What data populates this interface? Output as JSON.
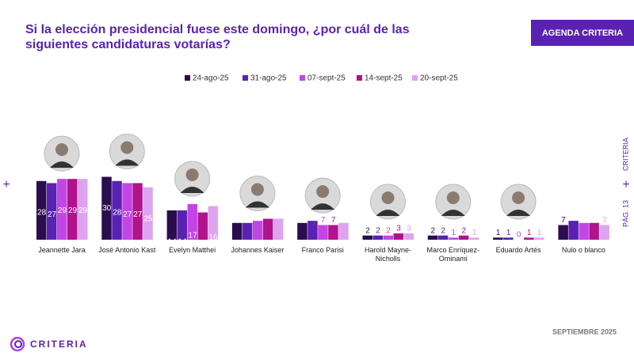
{
  "header": {
    "title": "Si la elección presidencial fuese este domingo, ¿por cuál de las siguientes candidaturas votarías?",
    "badge": "AGENDA CRITERIA"
  },
  "chart_data": {
    "type": "bar",
    "categories": [
      "Jeannette Jara",
      "José Antonio Kast",
      "Evelyn Matthei",
      "Johannes Kaiser",
      "Franco Parisi",
      "Harold Mayne-Nicholls",
      "Marco Enríquez-Ominami",
      "Eduardo Artés",
      "Nulo o blanco"
    ],
    "series": [
      {
        "name": "24-ago-25",
        "color": "#2b0d4f",
        "values": [
          28,
          30,
          14,
          8,
          8,
          2,
          2,
          1,
          7
        ]
      },
      {
        "name": "31-ago-25",
        "color": "#5a22b3",
        "values": [
          27,
          28,
          14,
          8,
          9,
          2,
          2,
          1,
          9
        ]
      },
      {
        "name": "07-sept-25",
        "color": "#c445e6",
        "values": [
          29,
          27,
          17,
          9,
          7,
          2,
          1,
          0,
          8
        ]
      },
      {
        "name": "14-sept-25",
        "color": "#b0138c",
        "values": [
          29,
          27,
          13,
          10,
          7,
          3,
          2,
          1,
          8
        ]
      },
      {
        "name": "20-sept-25",
        "color": "#dea3f0",
        "values": [
          29,
          25,
          16,
          10,
          8,
          3,
          1,
          1,
          7
        ]
      }
    ]
  },
  "footer": {
    "date": "SEPTIEMBRE 2025",
    "logo": "CRITERIA",
    "side_brand": "CRITERIA",
    "page": "PÁG. 13"
  }
}
